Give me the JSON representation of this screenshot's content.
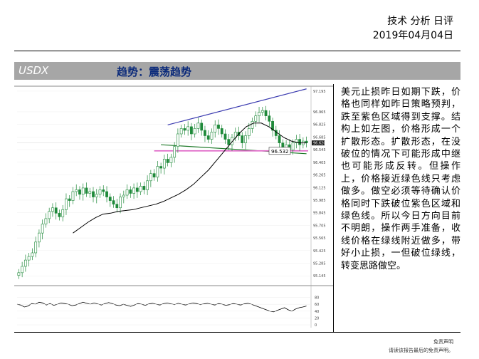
{
  "header": {
    "title": "技术 分析 日评",
    "date": "2019年04月04日"
  },
  "banner": {
    "symbol": "USDX",
    "trend": "趋势：震荡趋势"
  },
  "chart_data": {
    "type": "candlestick",
    "title": "",
    "xlabel": "",
    "ylabel": "",
    "ylim": [
      95.06,
      97.21
    ],
    "y_ticks": [
      "97.195",
      "96.965",
      "96.825",
      "96.685",
      "96.545",
      "96.405",
      "96.265",
      "96.125",
      "95.985",
      "95.845",
      "95.705",
      "95.565",
      "95.425",
      "95.285",
      "95.145"
    ],
    "price_label": "96.532",
    "price_level": 96.532,
    "last_price": 96.62,
    "indicator_ticks": [
      "80",
      "60",
      "40",
      "20",
      "0"
    ],
    "indicator_ylim": [
      0,
      100
    ],
    "line_colors": {
      "upper_trend": "#3b3bb0",
      "lower_trend": "#1f7a2a",
      "zone": "#e066c8",
      "candle": "#1f8a3a",
      "ma": "#000000"
    },
    "closes": [
      95.18,
      95.25,
      95.32,
      95.36,
      95.4,
      95.52,
      95.62,
      95.72,
      95.78,
      95.86,
      95.9,
      95.84,
      95.8,
      95.88,
      96.0,
      95.98,
      96.08,
      96.1,
      96.05,
      96.12,
      96.06,
      96.08,
      96.02,
      96.05,
      96.1,
      96.08,
      96.02,
      95.98,
      95.94,
      95.9,
      96.02,
      96.04,
      96.1,
      96.06,
      96.12,
      96.08,
      96.14,
      96.1,
      96.2,
      96.28,
      96.24,
      96.36,
      96.34,
      96.44,
      96.4,
      96.46,
      96.58,
      96.72,
      96.78,
      96.76,
      96.8,
      96.72,
      96.78,
      96.84,
      96.76,
      96.7,
      96.66,
      96.74,
      96.82,
      96.78,
      96.72,
      96.66,
      96.6,
      96.68,
      96.74,
      96.7,
      96.62,
      96.7,
      96.78,
      96.86,
      96.92,
      96.96,
      96.98,
      96.92,
      96.86,
      96.76,
      96.7,
      96.62,
      96.56,
      96.6,
      96.54,
      96.62,
      96.66,
      96.6,
      96.64,
      96.62
    ],
    "ma": [
      95.62,
      95.68,
      95.74,
      95.79,
      95.83,
      95.84,
      95.86,
      95.87,
      95.88,
      95.9,
      95.92,
      95.94,
      95.97,
      96.01,
      96.05,
      96.1,
      96.16,
      96.24,
      96.32,
      96.42,
      96.52,
      96.62,
      96.72,
      96.8,
      96.84,
      96.84,
      96.8,
      96.74,
      96.68,
      96.64,
      96.62,
      96.62
    ],
    "indicator": [
      60,
      58,
      52,
      55,
      62,
      60,
      66,
      64,
      58,
      62,
      57,
      60,
      64,
      62,
      60,
      56,
      58,
      62,
      66,
      63,
      60,
      64,
      61,
      58,
      62,
      65,
      62,
      58,
      56,
      60,
      57,
      54,
      58,
      62,
      60,
      57,
      61,
      63,
      60,
      58,
      62,
      64,
      61,
      59,
      63,
      60,
      58,
      61,
      64,
      62,
      59,
      61,
      63,
      60,
      58,
      62,
      60,
      57,
      59,
      62,
      60,
      58,
      61,
      63,
      60,
      56,
      52,
      48,
      44,
      40,
      38,
      42,
      46,
      50,
      44,
      40,
      46,
      50,
      52,
      55
    ]
  },
  "commentary": "美元止损昨日如期下跌，价格也同样如昨日策略预判，跌至紫色区域得到支撑。结构上如左图，价格形成一个扩散形态。扩散形态，在没破位的情况下可能形成中继也可能形成反转。但操作上，价格接近绿色线只考虑做多。做空必须等待确认价格同时下跌破位紫色区域和绿色线。所以今日方向目前不明朗，操作两手准备，收线价格在绿线附近做多，带好小止损，一但破位绿线，转变思路做空。",
  "footer": {
    "line1": "免责声明",
    "line2": "请读该报告最后的免责声明。"
  }
}
